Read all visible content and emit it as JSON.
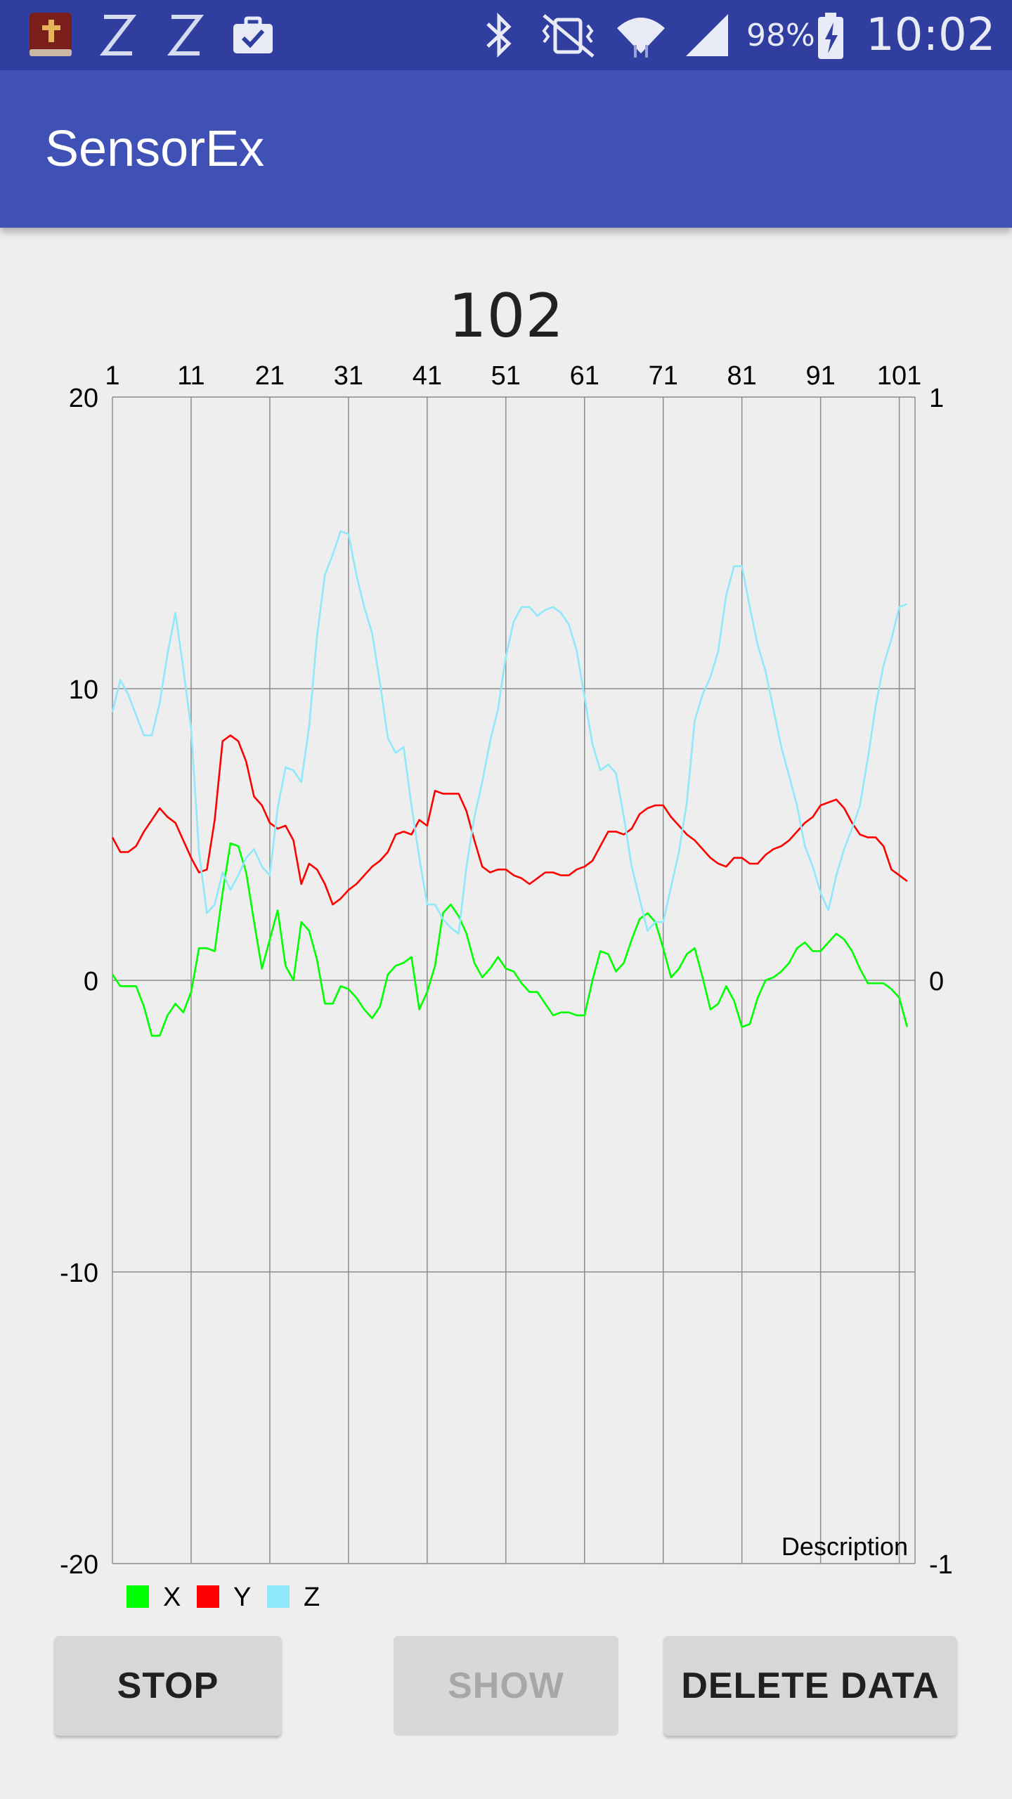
{
  "status_bar": {
    "icons": [
      "bible-app-icon",
      "sleep-z-icon",
      "sleep-z-icon",
      "briefcase-check-icon",
      "bluetooth-icon",
      "vibrate-mute-icon",
      "wifi-icon",
      "signal-icon",
      "battery-charging-icon"
    ],
    "battery": "98%",
    "time": "10:02"
  },
  "app_bar": {
    "title": "SensorEx"
  },
  "counter": "102",
  "chart_data": {
    "type": "line",
    "title": "",
    "description": "Description",
    "x_ticks": [
      "1",
      "11",
      "21",
      "31",
      "41",
      "51",
      "61",
      "71",
      "81",
      "91",
      "101"
    ],
    "x_range": [
      1,
      103
    ],
    "left_axis": {
      "ticks": [
        "20",
        "10",
        "0",
        "-10",
        "-20"
      ],
      "range": [
        -20,
        20
      ]
    },
    "right_axis": {
      "ticks": [
        "1",
        "0",
        "-1"
      ],
      "range": [
        -1,
        1
      ]
    },
    "grid": true,
    "legend_position": "bottom-left",
    "series": [
      {
        "name": "X",
        "color": "#00ff00",
        "values": [
          0.2,
          -0.2,
          -0.2,
          -0.2,
          -0.9,
          -1.9,
          -1.9,
          -1.2,
          -0.8,
          -1.1,
          -0.4,
          1.1,
          1.1,
          1.0,
          3.0,
          4.7,
          4.6,
          3.7,
          2.0,
          0.4,
          1.4,
          2.4,
          0.5,
          0.0,
          2.0,
          1.7,
          0.7,
          -0.8,
          -0.8,
          -0.2,
          -0.3,
          -0.6,
          -1.0,
          -1.3,
          -0.9,
          0.2,
          0.5,
          0.6,
          0.8,
          -1.0,
          -0.4,
          0.5,
          2.3,
          2.6,
          2.2,
          1.6,
          0.6,
          0.1,
          0.4,
          0.8,
          0.4,
          0.3,
          -0.1,
          -0.4,
          -0.4,
          -0.8,
          -1.2,
          -1.1,
          -1.1,
          -1.2,
          -1.2,
          0.0,
          1.0,
          0.9,
          0.3,
          0.6,
          1.4,
          2.1,
          2.3,
          2.0,
          1.1,
          0.1,
          0.4,
          0.9,
          1.1,
          0.1,
          -1.0,
          -0.8,
          -0.2,
          -0.7,
          -1.6,
          -1.5,
          -0.6,
          0.0,
          0.1,
          0.3,
          0.6,
          1.1,
          1.3,
          1.0,
          1.0,
          1.3,
          1.6,
          1.4,
          1.0,
          0.4,
          -0.1,
          -0.1,
          -0.1,
          -0.3,
          -0.6,
          -1.6
        ]
      },
      {
        "name": "Y",
        "color": "#ff0000",
        "values": [
          4.9,
          4.4,
          4.4,
          4.6,
          5.1,
          5.5,
          5.9,
          5.6,
          5.4,
          4.8,
          4.2,
          3.7,
          3.8,
          5.5,
          8.2,
          8.4,
          8.2,
          7.5,
          6.3,
          6.0,
          5.4,
          5.2,
          5.3,
          4.8,
          3.3,
          4.0,
          3.8,
          3.3,
          2.6,
          2.8,
          3.1,
          3.3,
          3.6,
          3.9,
          4.1,
          4.4,
          5.0,
          5.1,
          5.0,
          5.5,
          5.3,
          6.5,
          6.4,
          6.4,
          6.4,
          5.8,
          4.8,
          3.9,
          3.7,
          3.8,
          3.8,
          3.6,
          3.5,
          3.3,
          3.5,
          3.7,
          3.7,
          3.6,
          3.6,
          3.8,
          3.9,
          4.1,
          4.6,
          5.1,
          5.1,
          5.0,
          5.2,
          5.7,
          5.9,
          6.0,
          6.0,
          5.6,
          5.3,
          5.0,
          4.8,
          4.5,
          4.2,
          4.0,
          3.9,
          4.2,
          4.2,
          4.0,
          4.0,
          4.3,
          4.5,
          4.6,
          4.8,
          5.1,
          5.4,
          5.6,
          6.0,
          6.1,
          6.2,
          5.9,
          5.4,
          5.0,
          4.9,
          4.9,
          4.6,
          3.8,
          3.6,
          3.4
        ]
      },
      {
        "name": "Z",
        "color": "#90e8fb",
        "values": [
          9.2,
          10.3,
          9.8,
          9.1,
          8.4,
          8.4,
          9.5,
          11.2,
          12.6,
          10.7,
          8.6,
          4.4,
          2.3,
          2.6,
          3.7,
          3.1,
          3.6,
          4.2,
          4.5,
          3.9,
          3.6,
          5.9,
          7.3,
          7.2,
          6.8,
          8.7,
          11.8,
          13.9,
          14.6,
          15.4,
          15.3,
          13.9,
          12.8,
          11.9,
          10.2,
          8.3,
          7.8,
          8.0,
          6.0,
          4.2,
          2.6,
          2.6,
          2.1,
          1.8,
          1.6,
          3.9,
          5.6,
          6.8,
          8.2,
          9.3,
          11.1,
          12.3,
          12.8,
          12.8,
          12.5,
          12.7,
          12.8,
          12.6,
          12.2,
          11.3,
          9.7,
          8.1,
          7.2,
          7.4,
          7.1,
          5.6,
          3.9,
          2.8,
          1.7,
          2.0,
          2.0,
          3.2,
          4.4,
          6.1,
          8.9,
          9.8,
          10.4,
          11.3,
          13.2,
          14.2,
          14.2,
          12.8,
          11.5,
          10.6,
          9.3,
          8.0,
          7.0,
          6.0,
          4.6,
          3.9,
          3.0,
          2.4,
          3.6,
          4.5,
          5.2,
          6.0,
          7.6,
          9.4,
          10.8,
          11.7,
          12.8,
          12.9
        ]
      }
    ]
  },
  "buttons": {
    "stop": "STOP",
    "show": "SHOW",
    "delete": "DELETE DATA"
  }
}
